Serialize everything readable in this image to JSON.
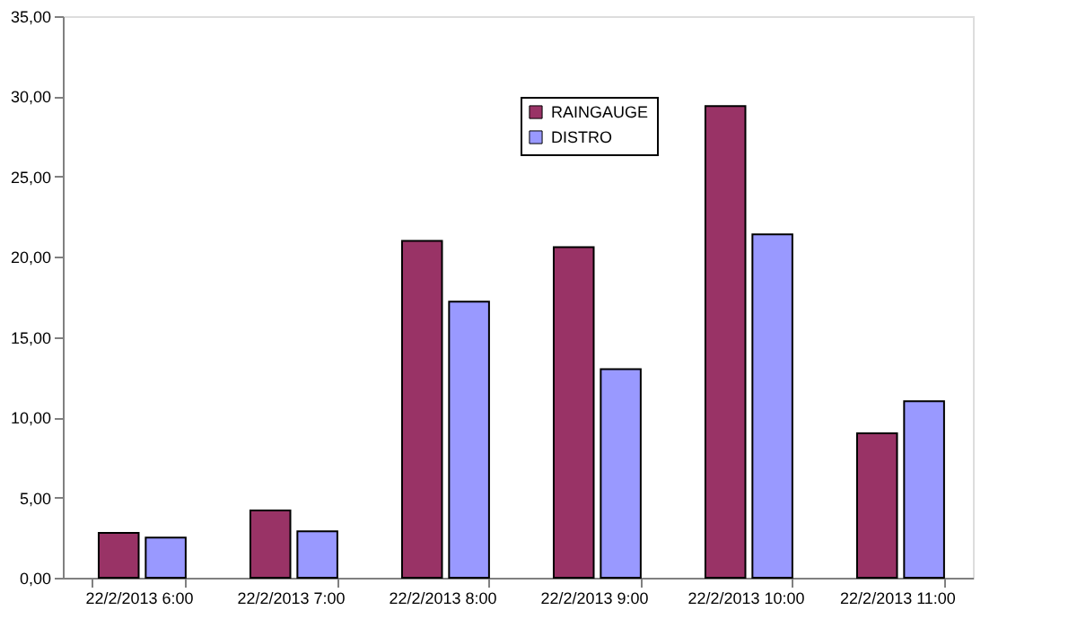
{
  "chart_data": {
    "type": "bar",
    "categories": [
      "22/2/2013 6:00",
      "22/2/2013 7:00",
      "22/2/2013 8:00",
      "22/2/2013 9:00",
      "22/2/2013 10:00",
      "22/2/2013 11:00"
    ],
    "series": [
      {
        "name": "RAINGAUGE",
        "color": "#993366",
        "values": [
          2.8,
          4.2,
          21.0,
          20.6,
          29.4,
          9.0
        ]
      },
      {
        "name": "DISTRO",
        "color": "#9999ff",
        "values": [
          2.5,
          2.9,
          17.2,
          13.0,
          21.4,
          11.0
        ]
      }
    ],
    "ylim": [
      0,
      35
    ],
    "yticks": [
      {
        "value": 0,
        "label": "0,00"
      },
      {
        "value": 5,
        "label": "5,00"
      },
      {
        "value": 10,
        "label": "10,00"
      },
      {
        "value": 15,
        "label": "15,00"
      },
      {
        "value": 20,
        "label": "20,00"
      },
      {
        "value": 25,
        "label": "25,00"
      },
      {
        "value": 30,
        "label": "30,00"
      },
      {
        "value": 35,
        "label": "35,00"
      }
    ],
    "grid": false,
    "legend": "top"
  }
}
